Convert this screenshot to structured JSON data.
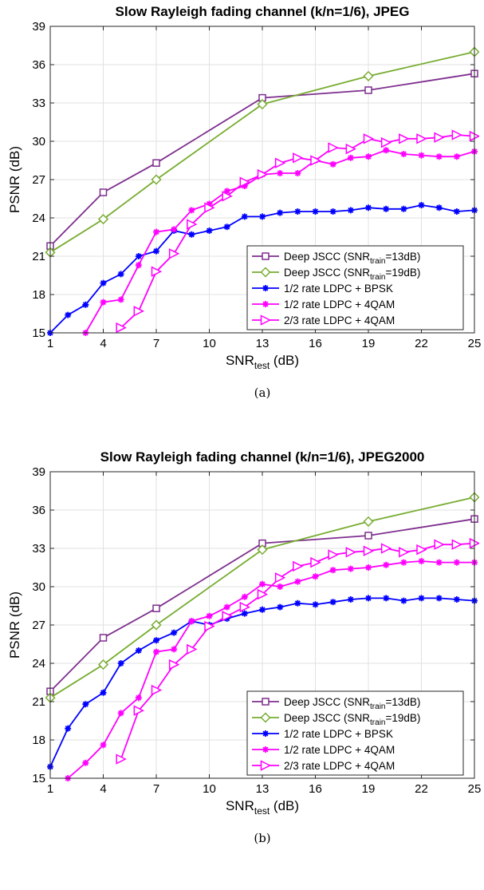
{
  "chart_data": [
    {
      "type": "line",
      "panel_id": "a",
      "title": "Slow Rayleigh fading channel (k/n=1/6), JPEG",
      "xlabel": {
        "main": "SNR",
        "sub": "test",
        "suffix": " (dB)"
      },
      "ylabel": "PSNR (dB)",
      "caption": "(a)",
      "xlim": [
        1,
        25
      ],
      "ylim": [
        15,
        39
      ],
      "xticks": [
        1,
        4,
        7,
        10,
        13,
        16,
        19,
        22,
        25
      ],
      "yticks": [
        15,
        18,
        21,
        24,
        27,
        30,
        33,
        36,
        39
      ],
      "grid": true,
      "legend_position": "lower-right",
      "series": [
        {
          "legend": {
            "pre": "Deep JSCC (SNR",
            "sub": "train",
            "post": "=13dB)"
          },
          "color": "#7E2F8E",
          "marker": "square",
          "x": [
            1,
            4,
            7,
            13,
            19,
            25
          ],
          "y": [
            21.8,
            26.0,
            28.3,
            33.4,
            34.0,
            35.3
          ]
        },
        {
          "legend": {
            "pre": "Deep JSCC (SNR",
            "sub": "train",
            "post": "=19dB)"
          },
          "color": "#77AC30",
          "marker": "diamond",
          "x": [
            1,
            4,
            7,
            13,
            19,
            25
          ],
          "y": [
            21.3,
            23.9,
            27.0,
            32.9,
            35.1,
            37.0
          ]
        },
        {
          "legend": {
            "pre": "1/2 rate LDPC + BPSK",
            "sub": "",
            "post": ""
          },
          "color": "#0000FF",
          "marker": "asterisk",
          "x": [
            1,
            2,
            3,
            4,
            5,
            6,
            7,
            8,
            9,
            10,
            11,
            12,
            13,
            14,
            15,
            16,
            17,
            18,
            19,
            20,
            21,
            22,
            23,
            24,
            25
          ],
          "y": [
            15.0,
            16.4,
            17.2,
            18.9,
            19.6,
            21.0,
            21.4,
            23.0,
            22.7,
            23.0,
            23.3,
            24.1,
            24.1,
            24.4,
            24.5,
            24.5,
            24.5,
            24.6,
            24.8,
            24.7,
            24.7,
            25.0,
            24.8,
            24.5,
            24.6
          ]
        },
        {
          "legend": {
            "pre": "1/2 rate LDPC + 4QAM",
            "sub": "",
            "post": ""
          },
          "color": "#FF00FF",
          "marker": "asterisk",
          "x": [
            3,
            4,
            5,
            6,
            7,
            8,
            9,
            10,
            11,
            12,
            13,
            14,
            15,
            16,
            17,
            18,
            19,
            20,
            21,
            22,
            23,
            24,
            25
          ],
          "y": [
            15.0,
            17.4,
            17.6,
            20.3,
            22.9,
            23.1,
            24.6,
            25.1,
            26.1,
            26.5,
            27.4,
            27.5,
            27.5,
            28.5,
            28.2,
            28.7,
            28.8,
            29.3,
            29.0,
            28.9,
            28.8,
            28.8,
            29.2
          ]
        },
        {
          "legend": {
            "pre": "2/3 rate LDPC + 4QAM",
            "sub": "",
            "post": ""
          },
          "color": "#FF00FF",
          "marker": "triangle-right",
          "x": [
            5,
            6,
            7,
            8,
            9,
            10,
            11,
            12,
            13,
            14,
            15,
            16,
            17,
            18,
            19,
            20,
            21,
            22,
            23,
            24,
            25
          ],
          "y": [
            15.4,
            16.7,
            19.8,
            21.2,
            23.5,
            24.8,
            25.7,
            26.8,
            27.4,
            28.3,
            28.7,
            28.5,
            29.5,
            29.4,
            30.2,
            29.9,
            30.2,
            30.2,
            30.3,
            30.5,
            30.4
          ]
        }
      ]
    },
    {
      "type": "line",
      "panel_id": "b",
      "title": "Slow Rayleigh fading channel (k/n=1/6), JPEG2000",
      "xlabel": {
        "main": "SNR",
        "sub": "test",
        "suffix": " (dB)"
      },
      "ylabel": "PSNR (dB)",
      "caption": "(b)",
      "xlim": [
        1,
        25
      ],
      "ylim": [
        15,
        39
      ],
      "xticks": [
        1,
        4,
        7,
        10,
        13,
        16,
        19,
        22,
        25
      ],
      "yticks": [
        15,
        18,
        21,
        24,
        27,
        30,
        33,
        36,
        39
      ],
      "grid": true,
      "legend_position": "lower-right",
      "series": [
        {
          "legend": {
            "pre": "Deep JSCC (SNR",
            "sub": "train",
            "post": "=13dB)"
          },
          "color": "#7E2F8E",
          "marker": "square",
          "x": [
            1,
            4,
            7,
            13,
            19,
            25
          ],
          "y": [
            21.8,
            26.0,
            28.3,
            33.4,
            34.0,
            35.3
          ]
        },
        {
          "legend": {
            "pre": "Deep JSCC (SNR",
            "sub": "train",
            "post": "=19dB)"
          },
          "color": "#77AC30",
          "marker": "diamond",
          "x": [
            1,
            4,
            7,
            13,
            19,
            25
          ],
          "y": [
            21.3,
            23.9,
            27.0,
            32.9,
            35.1,
            37.0
          ]
        },
        {
          "legend": {
            "pre": "1/2 rate LDPC + BPSK",
            "sub": "",
            "post": ""
          },
          "color": "#0000FF",
          "marker": "asterisk",
          "x": [
            1,
            2,
            3,
            4,
            5,
            6,
            7,
            8,
            9,
            10,
            11,
            12,
            13,
            14,
            15,
            16,
            17,
            18,
            19,
            20,
            21,
            22,
            23,
            24,
            25
          ],
          "y": [
            15.9,
            18.9,
            20.8,
            21.7,
            24.0,
            25.0,
            25.8,
            26.4,
            27.3,
            27.0,
            27.5,
            27.9,
            28.2,
            28.4,
            28.7,
            28.6,
            28.8,
            29.0,
            29.1,
            29.1,
            28.9,
            29.1,
            29.1,
            29.0,
            28.9
          ]
        },
        {
          "legend": {
            "pre": "1/2 rate LDPC + 4QAM",
            "sub": "",
            "post": ""
          },
          "color": "#FF00FF",
          "marker": "asterisk",
          "x": [
            2,
            3,
            4,
            5,
            6,
            7,
            8,
            9,
            10,
            11,
            12,
            13,
            14,
            15,
            16,
            17,
            18,
            19,
            20,
            21,
            22,
            23,
            24,
            25
          ],
          "y": [
            15.0,
            16.2,
            17.6,
            20.1,
            21.3,
            24.9,
            25.1,
            27.3,
            27.7,
            28.4,
            29.2,
            30.2,
            30.0,
            30.4,
            30.8,
            31.3,
            31.4,
            31.5,
            31.7,
            31.9,
            32.0,
            31.9,
            31.9,
            31.9
          ]
        },
        {
          "legend": {
            "pre": "2/3 rate LDPC + 4QAM",
            "sub": "",
            "post": ""
          },
          "color": "#FF00FF",
          "marker": "triangle-right",
          "x": [
            5,
            6,
            7,
            8,
            9,
            10,
            11,
            12,
            13,
            14,
            15,
            16,
            17,
            18,
            19,
            20,
            21,
            22,
            23,
            24,
            25
          ],
          "y": [
            16.5,
            20.3,
            21.9,
            23.9,
            25.1,
            26.9,
            27.7,
            28.4,
            29.4,
            30.7,
            31.6,
            31.9,
            32.5,
            32.7,
            32.8,
            33.0,
            32.7,
            32.9,
            33.3,
            33.3,
            33.4
          ]
        }
      ]
    }
  ]
}
